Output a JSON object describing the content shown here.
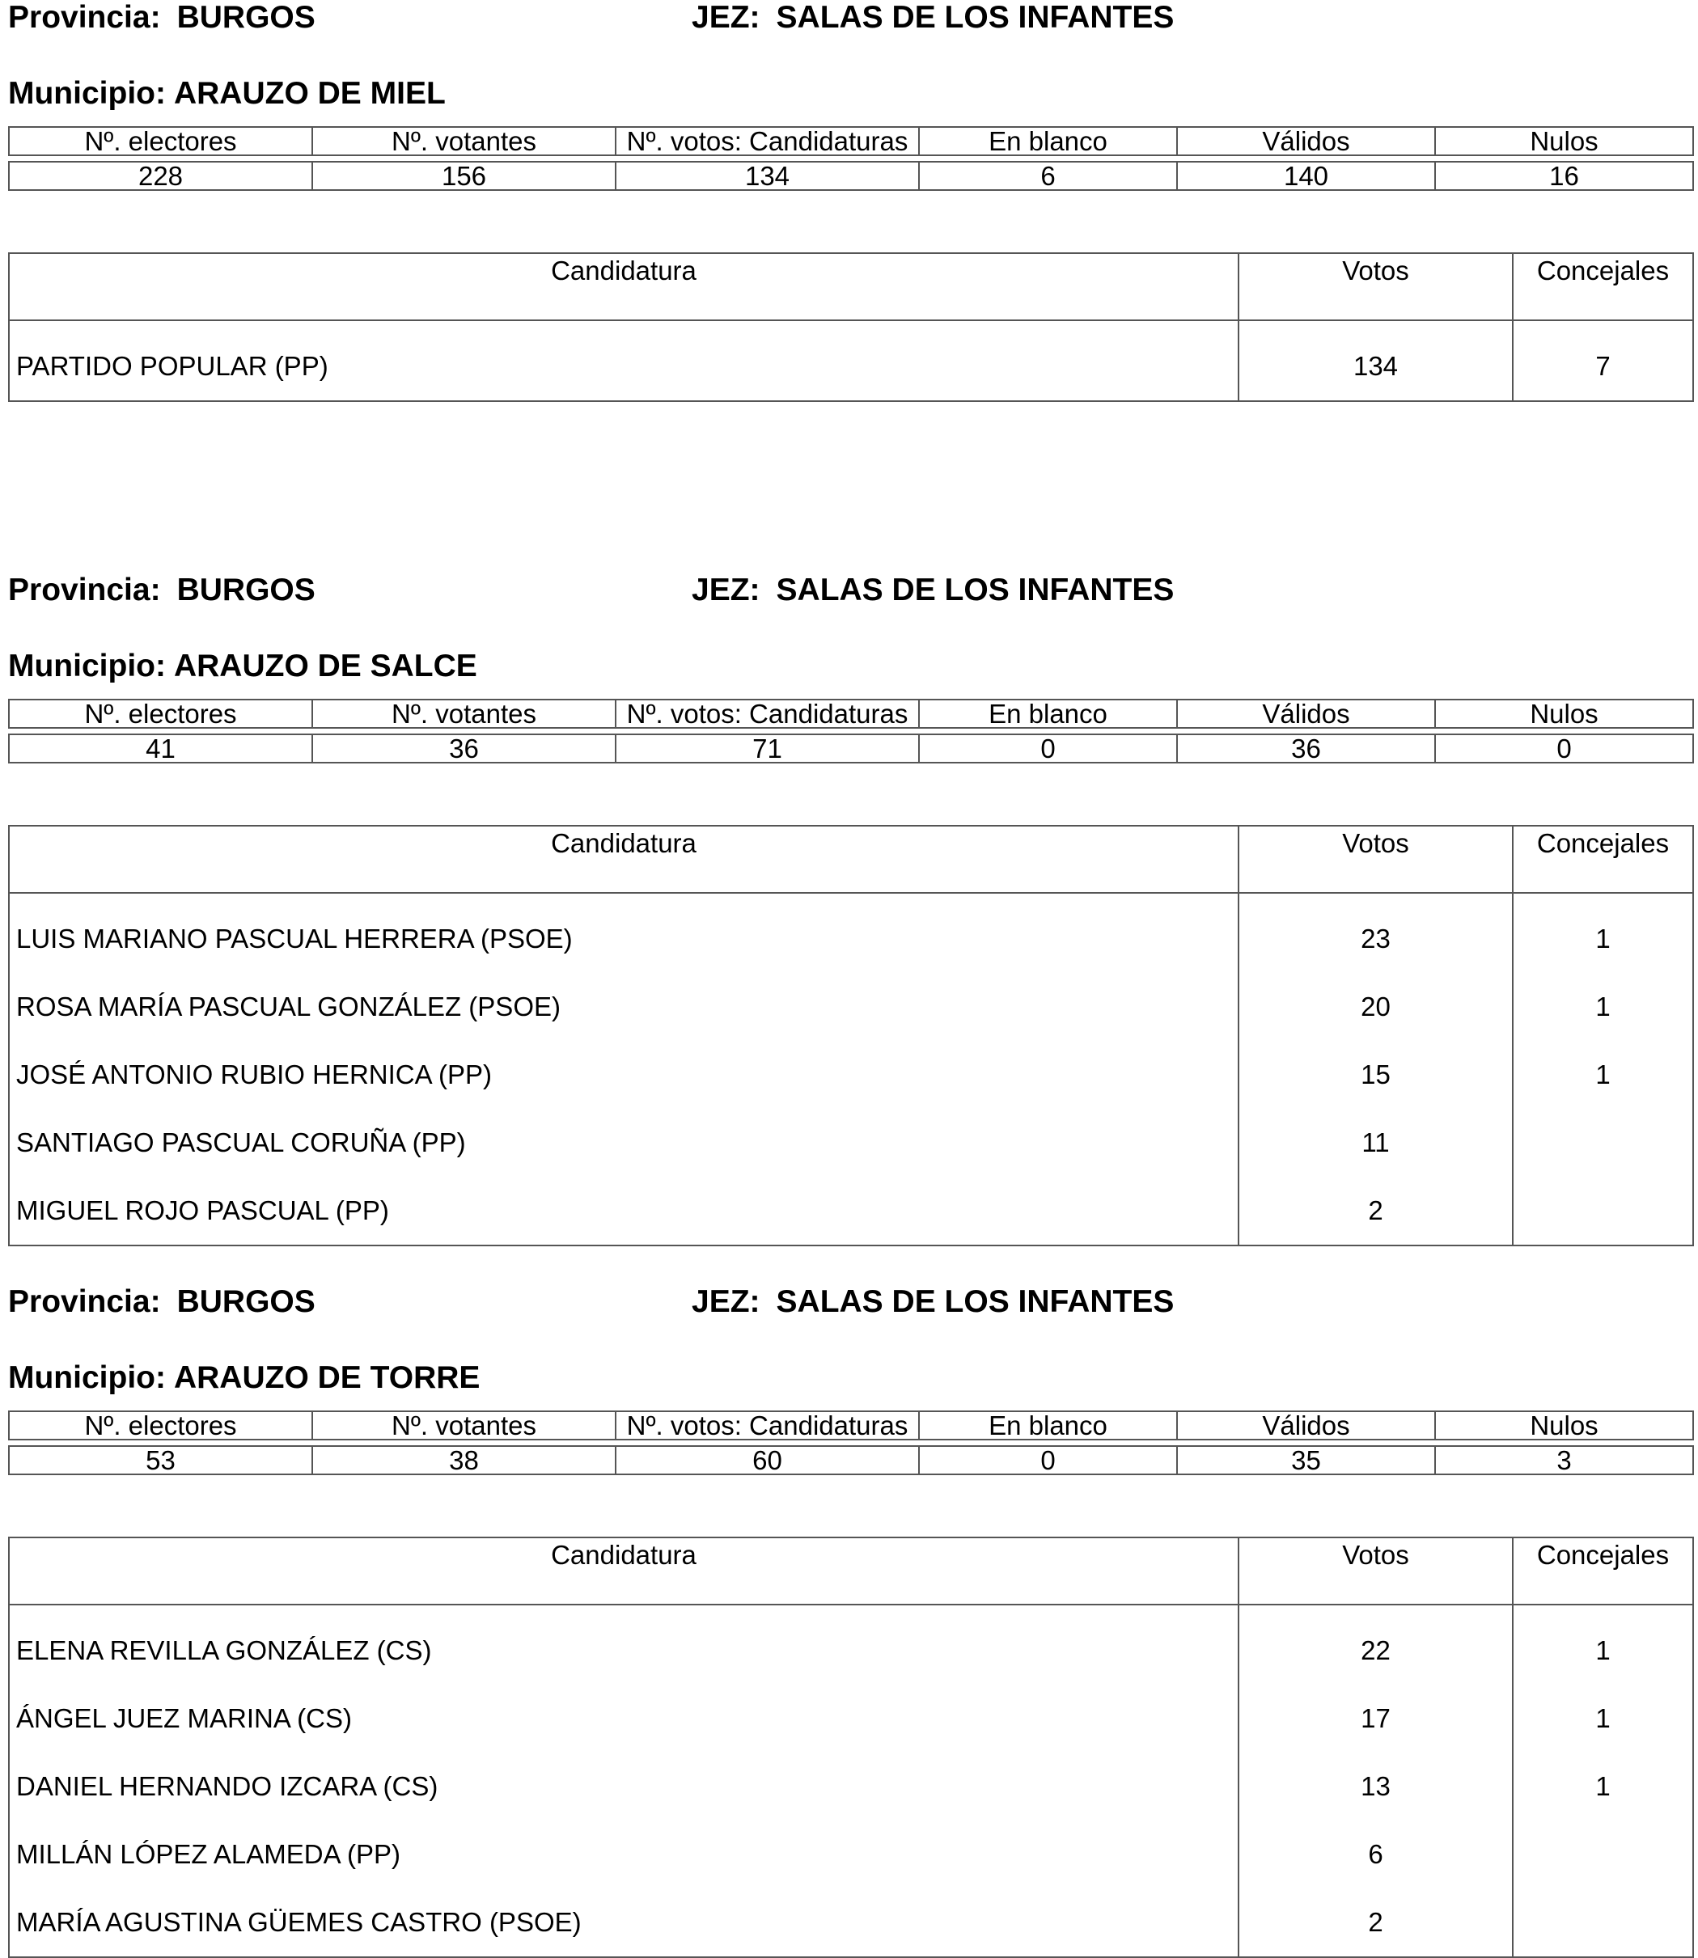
{
  "labels": {
    "provincia": "Provincia:",
    "jez": "JEZ:",
    "municipio": "Municipio:",
    "stats_headers": [
      "Nº. electores",
      "Nº. votantes",
      "Nº. votos: Candidaturas",
      "En blanco",
      "Válidos",
      "Nulos"
    ],
    "cand_headers": [
      "Candidatura",
      "Votos",
      "Concejales"
    ]
  },
  "sections": [
    {
      "provincia": "BURGOS",
      "jez": "SALAS DE LOS INFANTES",
      "municipio": "ARAUZO DE MIEL",
      "stats": [
        "228",
        "156",
        "134",
        "6",
        "140",
        "16"
      ],
      "candidates": [
        {
          "name": "PARTIDO POPULAR (PP)",
          "votos": "134",
          "concejales": "7"
        }
      ]
    },
    {
      "provincia": "BURGOS",
      "jez": "SALAS DE LOS INFANTES",
      "municipio": "ARAUZO DE SALCE",
      "stats": [
        "41",
        "36",
        "71",
        "0",
        "36",
        "0"
      ],
      "candidates": [
        {
          "name": "LUIS MARIANO PASCUAL HERRERA (PSOE)",
          "votos": "23",
          "concejales": "1"
        },
        {
          "name": "ROSA MARÍA PASCUAL GONZÁLEZ (PSOE)",
          "votos": "20",
          "concejales": "1"
        },
        {
          "name": "JOSÉ ANTONIO RUBIO HERNICA (PP)",
          "votos": "15",
          "concejales": "1"
        },
        {
          "name": "SANTIAGO PASCUAL CORUÑA (PP)",
          "votos": "11",
          "concejales": ""
        },
        {
          "name": "MIGUEL ROJO PASCUAL (PP)",
          "votos": "2",
          "concejales": ""
        }
      ]
    },
    {
      "provincia": "BURGOS",
      "jez": "SALAS DE LOS INFANTES",
      "municipio": "ARAUZO DE TORRE",
      "stats": [
        "53",
        "38",
        "60",
        "0",
        "35",
        "3"
      ],
      "candidates": [
        {
          "name": "ELENA REVILLA GONZÁLEZ (CS)",
          "votos": "22",
          "concejales": "1"
        },
        {
          "name": "ÁNGEL JUEZ MARINA (CS)",
          "votos": "17",
          "concejales": "1"
        },
        {
          "name": "DANIEL HERNANDO IZCARA (CS)",
          "votos": "13",
          "concejales": "1"
        },
        {
          "name": "MILLÁN LÓPEZ ALAMEDA (PP)",
          "votos": "6",
          "concejales": ""
        },
        {
          "name": "MARÍA AGUSTINA GÜEMES CASTRO (PSOE)",
          "votos": "2",
          "concejales": ""
        }
      ]
    }
  ]
}
